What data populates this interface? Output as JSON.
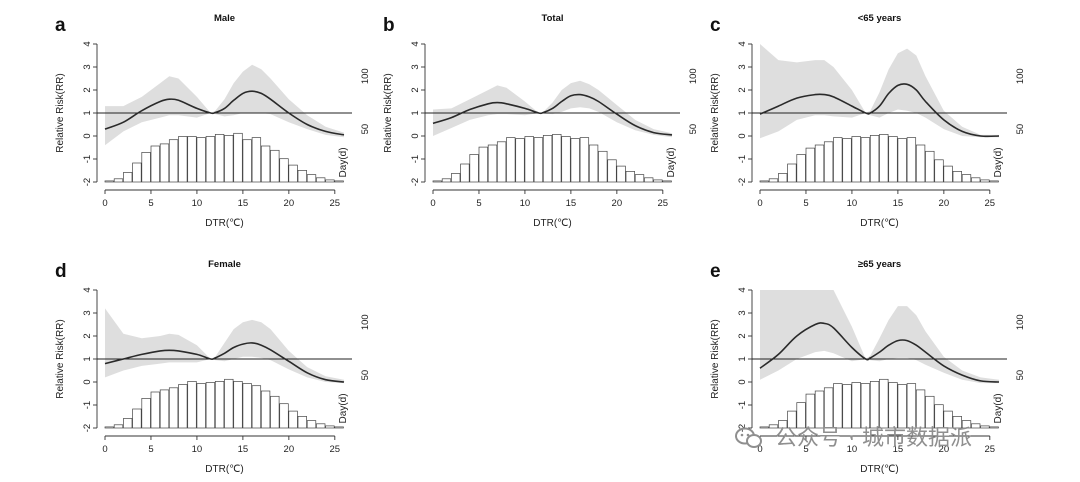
{
  "watermark": {
    "text": "公众号 · 城市数据派",
    "icon": "wechat-icon"
  },
  "chart_data": [
    {
      "type": "line",
      "letter": "a",
      "title": "Male",
      "xlabel": "DTR(℃)",
      "ylabel": "Relative Risk(RR)",
      "y2label": "Day(d)",
      "xlim": [
        0,
        26
      ],
      "ylim": [
        -2,
        4
      ],
      "xticks": [
        "0",
        "5",
        "10",
        "15",
        "20",
        "25"
      ],
      "yticks": [
        "-2",
        "-1",
        "0",
        "1",
        "2",
        "3",
        "4"
      ],
      "y2ticks": [
        "50",
        "100"
      ],
      "curve": {
        "x": [
          0,
          2,
          4,
          6,
          7,
          8,
          10,
          11.5,
          12,
          13,
          14,
          15,
          16,
          17,
          18,
          20,
          22,
          24,
          26
        ],
        "rr": [
          0.3,
          0.6,
          1.1,
          1.5,
          1.6,
          1.55,
          1.2,
          1.0,
          1.02,
          1.2,
          1.55,
          1.85,
          1.95,
          1.85,
          1.6,
          1.0,
          0.5,
          0.2,
          0.05
        ],
        "lower": [
          -0.4,
          0.2,
          0.6,
          0.8,
          0.9,
          0.9,
          0.8,
          1.0,
          0.95,
          0.85,
          0.9,
          1.0,
          1.0,
          1.0,
          0.95,
          0.6,
          0.3,
          0.05,
          -0.05
        ],
        "upper": [
          1.3,
          1.3,
          1.7,
          2.3,
          2.6,
          2.5,
          1.7,
          1.0,
          1.1,
          1.6,
          2.3,
          2.8,
          3.1,
          2.9,
          2.5,
          1.6,
          0.9,
          0.4,
          0.15
        ]
      },
      "histogram": {
        "bins": [
          0,
          1,
          2,
          3,
          4,
          5,
          6,
          7,
          8,
          9,
          10,
          11,
          12,
          13,
          14,
          15,
          16,
          17,
          18,
          19,
          20,
          21,
          22,
          23,
          24,
          25
        ],
        "days": [
          1,
          3,
          9,
          18,
          28,
          34,
          36,
          40,
          43,
          43,
          42,
          43,
          45,
          44,
          46,
          40,
          42,
          34,
          30,
          22,
          16,
          11,
          7,
          4,
          2,
          1
        ],
        "ymax": 120
      }
    },
    {
      "type": "line",
      "letter": "b",
      "title": "Total",
      "xlabel": "DTR(℃)",
      "ylabel": "Relative Risk(RR)",
      "y2label": "Day(d)",
      "xlim": [
        0,
        26
      ],
      "ylim": [
        -2,
        4
      ],
      "xticks": [
        "0",
        "5",
        "10",
        "15",
        "20",
        "25"
      ],
      "yticks": [
        "-2",
        "-1",
        "0",
        "1",
        "2",
        "3",
        "4"
      ],
      "y2ticks": [
        "50",
        "100"
      ],
      "curve": {
        "x": [
          0,
          2,
          4,
          6,
          7,
          8,
          10,
          11.5,
          12,
          13,
          14,
          15,
          16,
          17,
          18,
          20,
          22,
          24,
          26
        ],
        "rr": [
          0.55,
          0.8,
          1.15,
          1.4,
          1.45,
          1.4,
          1.2,
          1.0,
          1.02,
          1.2,
          1.5,
          1.75,
          1.8,
          1.7,
          1.5,
          0.95,
          0.45,
          0.15,
          0.05
        ],
        "lower": [
          0.0,
          0.35,
          0.7,
          0.9,
          0.95,
          0.95,
          0.9,
          1.0,
          0.98,
          0.95,
          1.05,
          1.2,
          1.25,
          1.2,
          1.05,
          0.6,
          0.25,
          0.05,
          -0.05
        ],
        "upper": [
          1.15,
          1.2,
          1.6,
          2.0,
          2.2,
          2.1,
          1.5,
          1.0,
          1.05,
          1.45,
          2.0,
          2.3,
          2.4,
          2.25,
          2.0,
          1.35,
          0.7,
          0.3,
          0.12
        ]
      },
      "histogram": {
        "bins": [
          0,
          1,
          2,
          3,
          4,
          5,
          6,
          7,
          8,
          9,
          10,
          11,
          12,
          13,
          14,
          15,
          16,
          17,
          18,
          19,
          20,
          21,
          22,
          23,
          24,
          25
        ],
        "days": [
          1,
          3,
          8,
          17,
          26,
          33,
          35,
          38,
          42,
          41,
          43,
          42,
          44,
          45,
          43,
          41,
          42,
          35,
          29,
          21,
          15,
          10,
          7,
          4,
          2,
          1
        ],
        "ymax": 120
      }
    },
    {
      "type": "line",
      "letter": "c",
      "title": "<65 years",
      "xlabel": "DTR(℃)",
      "ylabel": "Relative Risk(RR)",
      "y2label": "Day(d)",
      "xlim": [
        0,
        26
      ],
      "ylim": [
        -2,
        4
      ],
      "xticks": [
        "0",
        "5",
        "10",
        "15",
        "20",
        "25"
      ],
      "yticks": [
        "-2",
        "-1",
        "0",
        "1",
        "2",
        "3",
        "4"
      ],
      "y2ticks": [
        "50",
        "100"
      ],
      "curve": {
        "x": [
          0,
          2,
          4,
          6,
          7,
          8,
          10,
          11.5,
          12,
          13,
          14,
          15,
          16,
          17,
          18,
          20,
          22,
          24,
          26
        ],
        "rr": [
          0.95,
          1.3,
          1.65,
          1.8,
          1.8,
          1.7,
          1.3,
          1.0,
          1.0,
          1.3,
          1.85,
          2.2,
          2.25,
          2.0,
          1.5,
          0.7,
          0.2,
          0.0,
          0.0
        ],
        "lower": [
          -0.1,
          0.2,
          0.7,
          0.9,
          0.9,
          0.85,
          0.8,
          1.0,
          0.9,
          0.8,
          1.0,
          1.15,
          1.1,
          1.0,
          0.8,
          0.3,
          0.0,
          -0.05,
          -0.05
        ],
        "upper": [
          4.0,
          3.3,
          3.2,
          3.3,
          3.3,
          3.0,
          2.0,
          1.0,
          1.1,
          1.9,
          2.9,
          3.6,
          3.8,
          3.5,
          2.6,
          1.1,
          0.4,
          0.05,
          0.05
        ]
      },
      "histogram": {
        "bins": [
          0,
          1,
          2,
          3,
          4,
          5,
          6,
          7,
          8,
          9,
          10,
          11,
          12,
          13,
          14,
          15,
          16,
          17,
          18,
          19,
          20,
          21,
          22,
          23,
          24,
          25
        ],
        "days": [
          1,
          3,
          8,
          17,
          26,
          32,
          35,
          38,
          42,
          41,
          43,
          42,
          44,
          45,
          43,
          41,
          42,
          35,
          29,
          21,
          15,
          10,
          7,
          4,
          2,
          1
        ],
        "ymax": 120
      }
    },
    {
      "type": "line",
      "letter": "d",
      "title": "Female",
      "xlabel": "DTR(℃)",
      "ylabel": "Relative Risk(RR)",
      "y2label": "Day(d)",
      "xlim": [
        0,
        26
      ],
      "ylim": [
        -2,
        4
      ],
      "xticks": [
        "0",
        "5",
        "10",
        "15",
        "20",
        "25"
      ],
      "yticks": [
        "-2",
        "-1",
        "0",
        "1",
        "2",
        "3",
        "4"
      ],
      "y2ticks": [
        "50",
        "100"
      ],
      "curve": {
        "x": [
          0,
          2,
          4,
          6,
          7,
          8,
          10,
          11.5,
          12,
          13,
          14,
          15,
          16,
          17,
          18,
          20,
          22,
          24,
          26
        ],
        "rr": [
          0.8,
          1.0,
          1.2,
          1.35,
          1.38,
          1.35,
          1.2,
          1.0,
          1.05,
          1.25,
          1.5,
          1.65,
          1.7,
          1.6,
          1.4,
          0.9,
          0.4,
          0.1,
          0.0
        ],
        "lower": [
          0.2,
          0.5,
          0.7,
          0.8,
          0.85,
          0.85,
          0.85,
          1.0,
          0.95,
          0.9,
          1.0,
          1.1,
          1.1,
          1.05,
          0.95,
          0.55,
          0.2,
          0.0,
          -0.05
        ],
        "upper": [
          3.2,
          2.1,
          1.9,
          2.0,
          2.1,
          2.05,
          1.6,
          1.0,
          1.1,
          1.7,
          2.3,
          2.6,
          2.7,
          2.6,
          2.3,
          1.35,
          0.65,
          0.25,
          0.1
        ]
      },
      "histogram": {
        "bins": [
          0,
          1,
          2,
          3,
          4,
          5,
          6,
          7,
          8,
          9,
          10,
          11,
          12,
          13,
          14,
          15,
          16,
          17,
          18,
          19,
          20,
          21,
          22,
          23,
          24,
          25
        ],
        "days": [
          1,
          3,
          9,
          18,
          28,
          34,
          36,
          38,
          41,
          44,
          42,
          43,
          44,
          46,
          44,
          42,
          40,
          35,
          30,
          23,
          16,
          11,
          7,
          4,
          2,
          1
        ],
        "ymax": 120
      }
    },
    {
      "type": "line",
      "letter": "e",
      "title": "≥65 years",
      "xlabel": "DTR(℃)",
      "ylabel": "Relative Risk(RR)",
      "y2label": "Day(d)",
      "xlim": [
        0,
        26
      ],
      "ylim": [
        -2,
        4
      ],
      "xticks": [
        "0",
        "5",
        "10",
        "15",
        "20",
        "25"
      ],
      "yticks": [
        "-2",
        "-1",
        "0",
        "1",
        "2",
        "3",
        "4"
      ],
      "y2ticks": [
        "50",
        "100"
      ],
      "curve": {
        "x": [
          0,
          2,
          4,
          6,
          7,
          8,
          10,
          11.5,
          12,
          13,
          14,
          15,
          16,
          17,
          18,
          20,
          22,
          24,
          26
        ],
        "rr": [
          0.6,
          1.2,
          2.0,
          2.5,
          2.55,
          2.35,
          1.5,
          1.0,
          1.05,
          1.3,
          1.6,
          1.8,
          1.8,
          1.6,
          1.3,
          0.7,
          0.3,
          0.05,
          0.0
        ],
        "lower": [
          0.1,
          0.5,
          1.0,
          1.3,
          1.35,
          1.25,
          0.9,
          1.0,
          0.95,
          0.9,
          1.0,
          1.05,
          1.05,
          0.95,
          0.75,
          0.4,
          0.1,
          -0.05,
          -0.05
        ],
        "upper": [
          4.0,
          4.0,
          4.0,
          4.0,
          4.0,
          4.0,
          2.4,
          1.0,
          1.15,
          1.9,
          2.7,
          3.3,
          3.3,
          2.9,
          2.2,
          1.1,
          0.5,
          0.2,
          0.1
        ]
      },
      "histogram": {
        "bins": [
          0,
          1,
          2,
          3,
          4,
          5,
          6,
          7,
          8,
          9,
          10,
          11,
          12,
          13,
          14,
          15,
          16,
          17,
          18,
          19,
          20,
          21,
          22,
          23,
          24,
          25
        ],
        "days": [
          1,
          3,
          7,
          16,
          24,
          32,
          35,
          38,
          42,
          41,
          43,
          42,
          44,
          46,
          43,
          41,
          42,
          36,
          30,
          22,
          16,
          11,
          7,
          4,
          2,
          1
        ],
        "ymax": 120
      }
    }
  ]
}
